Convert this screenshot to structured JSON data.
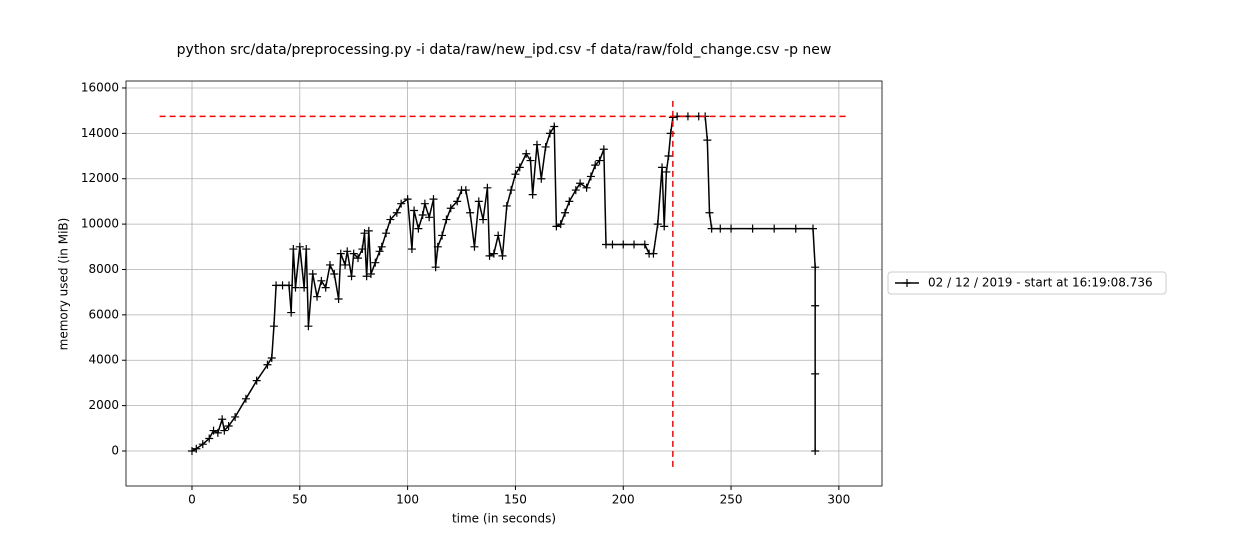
{
  "chart_data": {
    "type": "line",
    "title": "python src/data/preprocessing.py -i data/raw/new_ipd.csv -f data/raw/fold_change.csv -p new",
    "xlabel": "time (in seconds)",
    "ylabel": "memory used (in MiB)",
    "xlim": [
      -30.6,
      320
    ],
    "ylim": [
      -1543,
      16307
    ],
    "xticks": [
      0,
      50,
      100,
      150,
      200,
      250,
      300
    ],
    "yticks": [
      0,
      2000,
      4000,
      6000,
      8000,
      10000,
      12000,
      14000,
      16000
    ],
    "grid": true,
    "legend": "outside right",
    "x": [
      0,
      2,
      5,
      8,
      10,
      12,
      14,
      15,
      17,
      20,
      25,
      30,
      35,
      37,
      38,
      39,
      42,
      45,
      46,
      47,
      48,
      50,
      52,
      53,
      54,
      56,
      58,
      60,
      62,
      64,
      66,
      68,
      69,
      71,
      72,
      74,
      75,
      77,
      79,
      80,
      81,
      82,
      83,
      85,
      87,
      88,
      90,
      92,
      95,
      97,
      100,
      102,
      103,
      105,
      107,
      108,
      110,
      112,
      113,
      114,
      116,
      118,
      120,
      123,
      125,
      127,
      129,
      131,
      133,
      135,
      137,
      138,
      140,
      142,
      144,
      146,
      148,
      150,
      152,
      155,
      157,
      158,
      160,
      162,
      164,
      166,
      168,
      169,
      171,
      173,
      175,
      178,
      180,
      183,
      185,
      187,
      189,
      191,
      192,
      195,
      200,
      205,
      210,
      212,
      214,
      216,
      218,
      219,
      220,
      221,
      222,
      223,
      225,
      230,
      235,
      238,
      239,
      240,
      241,
      245,
      250,
      260,
      270,
      280,
      288,
      289,
      289,
      289,
      289
    ],
    "series": [
      {
        "name": "02 / 12 / 2019 - start at 16:19:08.736",
        "color": "#000000",
        "values": [
          0,
          100,
          300,
          550,
          900,
          800,
          1400,
          900,
          1100,
          1500,
          2300,
          3100,
          3800,
          4100,
          5500,
          7300,
          7300,
          7300,
          6100,
          8900,
          7200,
          9000,
          7200,
          8900,
          5500,
          7800,
          6800,
          7500,
          7200,
          8200,
          7800,
          6700,
          8700,
          8200,
          8800,
          7700,
          8700,
          8500,
          8900,
          9600,
          7700,
          9700,
          7800,
          8300,
          8800,
          9000,
          9600,
          10200,
          10500,
          10900,
          11100,
          8900,
          10600,
          9800,
          10400,
          10900,
          10300,
          11100,
          8100,
          9000,
          9500,
          10200,
          10700,
          11000,
          11500,
          11500,
          10500,
          9000,
          11000,
          10200,
          11600,
          8600,
          8700,
          9500,
          8600,
          10800,
          11500,
          12200,
          12500,
          13100,
          12800,
          11300,
          13500,
          12000,
          13400,
          14000,
          14300,
          9900,
          10000,
          10500,
          11000,
          11500,
          11800,
          11600,
          12100,
          12600,
          12800,
          13300,
          9100,
          9100,
          9100,
          9100,
          9100,
          8700,
          8700,
          10000,
          12500,
          9900,
          12300,
          13000,
          14000,
          14700,
          14750,
          14750,
          14750,
          14750,
          13700,
          10500,
          9800,
          9800,
          9800,
          9800,
          9800,
          9800,
          9800,
          8100,
          6400,
          3400,
          0
        ]
      }
    ],
    "hlines": [
      {
        "y": 14750,
        "xmin": -15,
        "xmax": 304,
        "color": "#ff0000"
      }
    ],
    "vlines": [
      {
        "x": 223,
        "ymin": -700,
        "ymax": 15500,
        "color": "#ff0000"
      }
    ]
  }
}
